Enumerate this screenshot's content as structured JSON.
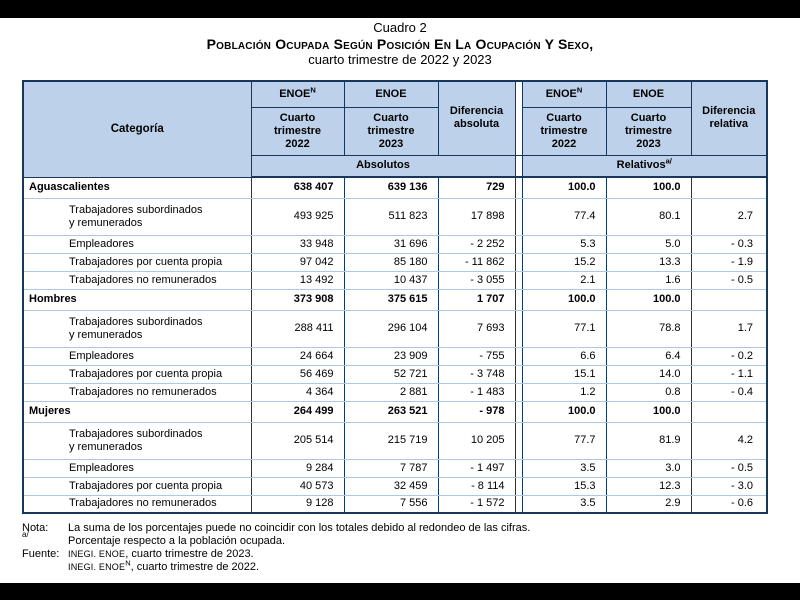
{
  "colors": {
    "header_fill": "#BDD2EA",
    "border_dark": "#17375D",
    "row_separator": "#AEC8E4",
    "frame_bar": "#000000",
    "page_bg": "#FFFFFF"
  },
  "title": {
    "cuadro": "Cuadro 2",
    "main": "Población Ocupada Según Posición En La Ocupación Y Sexo,",
    "sub": "cuarto trimestre de 2022 y 2023"
  },
  "table": {
    "header": {
      "category": "Categoría",
      "enoe_n_abs": {
        "label": "ENOE",
        "sup": "N"
      },
      "enoe_abs": "ENOE",
      "abs_2022": {
        "l1": "Cuarto",
        "l2": "trimestre",
        "l3": "2022"
      },
      "abs_2023": {
        "l1": "Cuarto",
        "l2": "trimestre",
        "l3": "2023"
      },
      "dif_abs": {
        "l1": "Diferencia",
        "l2": "absoluta"
      },
      "enoe_n_rel": {
        "label": "ENOE",
        "sup": "N"
      },
      "enoe_rel": "ENOE",
      "rel_2022": {
        "l1": "Cuarto",
        "l2": "trimestre",
        "l3": "2022"
      },
      "rel_2023": {
        "l1": "Cuarto",
        "l2": "trimestre",
        "l3": "2023"
      },
      "dif_rel": {
        "l1": "Diferencia",
        "l2": "relativa"
      },
      "band_abs": "Absolutos",
      "band_rel": "Relativos",
      "band_rel_sup": "a/"
    },
    "sections": [
      {
        "name": "Aguascalientes",
        "totals": [
          "638 407",
          "639 136",
          "729",
          "100.0",
          "100.0",
          ""
        ],
        "rows": [
          {
            "label_lines": [
              "Trabajadores subordinados",
              "y remunerados"
            ],
            "values": [
              "493 925",
              "511 823",
              "17 898",
              "77.4",
              "80.1",
              "2.7"
            ]
          },
          {
            "label_lines": [
              "Empleadores"
            ],
            "values": [
              "33 948",
              "31 696",
              "- 2 252",
              "5.3",
              "5.0",
              "- 0.3"
            ]
          },
          {
            "label_lines": [
              "Trabajadores por cuenta propia"
            ],
            "values": [
              "97 042",
              "85 180",
              "- 11 862",
              "15.2",
              "13.3",
              "- 1.9"
            ]
          },
          {
            "label_lines": [
              "Trabajadores no remunerados"
            ],
            "values": [
              "13 492",
              "10 437",
              "- 3 055",
              "2.1",
              "1.6",
              "- 0.5"
            ]
          }
        ]
      },
      {
        "name": "Hombres",
        "totals": [
          "373 908",
          "375 615",
          "1 707",
          "100.0",
          "100.0",
          ""
        ],
        "rows": [
          {
            "label_lines": [
              "Trabajadores subordinados",
              "y remunerados"
            ],
            "values": [
              "288 411",
              "296 104",
              "7 693",
              "77.1",
              "78.8",
              "1.7"
            ]
          },
          {
            "label_lines": [
              "Empleadores"
            ],
            "values": [
              "24 664",
              "23 909",
              "- 755",
              "6.6",
              "6.4",
              "- 0.2"
            ]
          },
          {
            "label_lines": [
              "Trabajadores por cuenta propia"
            ],
            "values": [
              "56 469",
              "52 721",
              "- 3 748",
              "15.1",
              "14.0",
              "- 1.1"
            ]
          },
          {
            "label_lines": [
              "Trabajadores no remunerados"
            ],
            "values": [
              "4 364",
              "2 881",
              "- 1 483",
              "1.2",
              "0.8",
              "- 0.4"
            ]
          }
        ]
      },
      {
        "name": "Mujeres",
        "totals": [
          "264 499",
          "263 521",
          "- 978",
          "100.0",
          "100.0",
          ""
        ],
        "rows": [
          {
            "label_lines": [
              "Trabajadores subordinados",
              "y remunerados"
            ],
            "values": [
              "205 514",
              "215 719",
              "10 205",
              "77.7",
              "81.9",
              "4.2"
            ]
          },
          {
            "label_lines": [
              "Empleadores"
            ],
            "values": [
              "9 284",
              "7 787",
              "- 1 497",
              "3.5",
              "3.0",
              "- 0.5"
            ]
          },
          {
            "label_lines": [
              "Trabajadores por cuenta propia"
            ],
            "values": [
              "40 573",
              "32 459",
              "- 8 114",
              "15.3",
              "12.3",
              "- 3.0"
            ]
          },
          {
            "label_lines": [
              "Trabajadores no remunerados"
            ],
            "values": [
              "9 128",
              "7 556",
              "- 1 572",
              "3.5",
              "2.9",
              "- 0.6"
            ]
          }
        ]
      }
    ]
  },
  "notes": {
    "nota_label": "Nota:",
    "nota_text": "La suma de los porcentajes puede no coincidir con los totales debido al redondeo de las cifras.",
    "ref_label": "a/",
    "ref_text": "Porcentaje respecto a la población ocupada.",
    "fuente_label": "Fuente:",
    "fuente1_smallcaps": "INEGI. ENOE",
    "fuente1_rest": ", cuarto trimestre de 2023.",
    "fuente2_smallcaps": "INEGI. ENOE",
    "fuente2_sup": "N",
    "fuente2_rest": ", cuarto trimestre de 2022."
  }
}
